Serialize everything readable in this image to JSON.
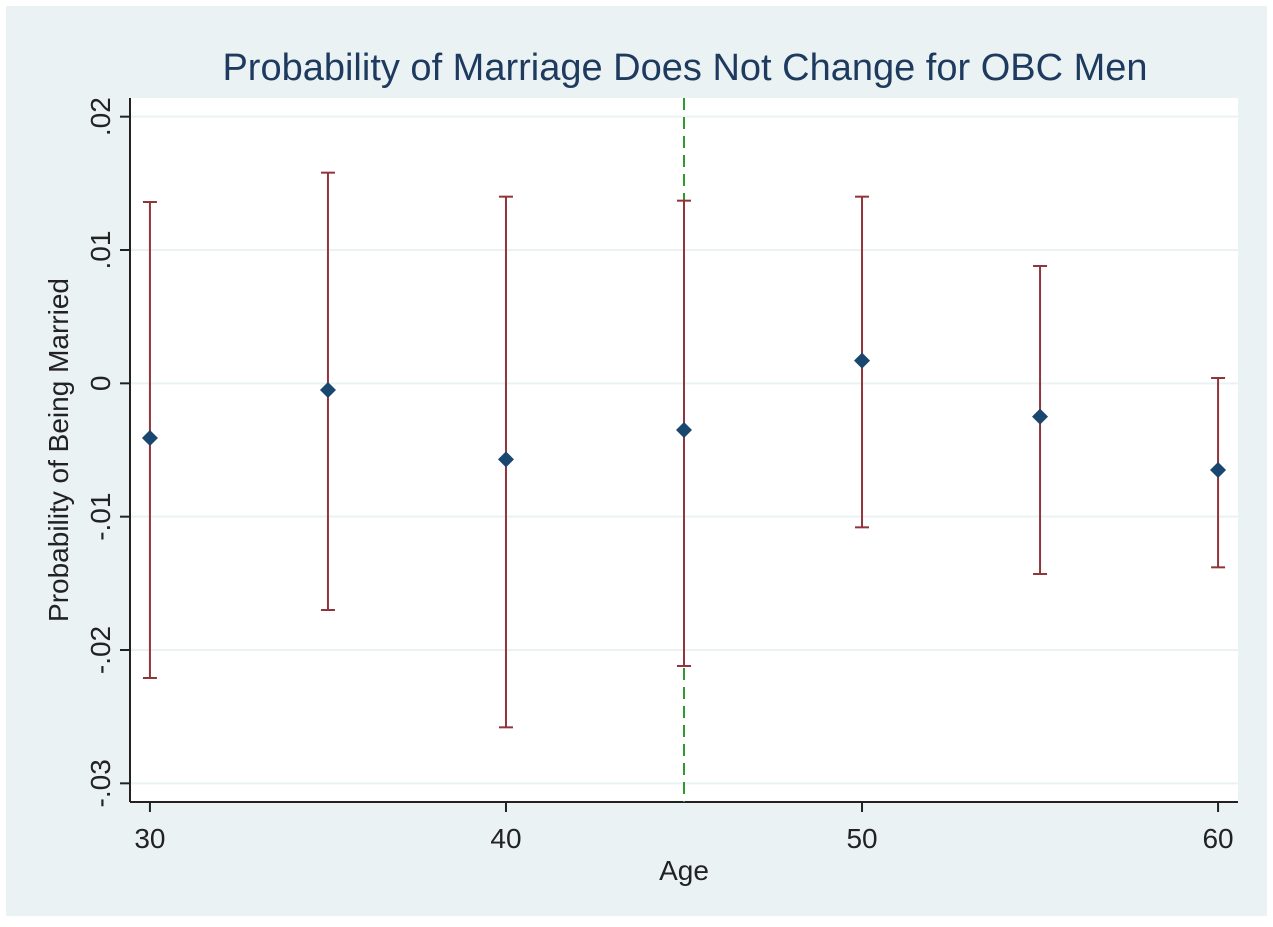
{
  "chart_data": {
    "type": "errorbar",
    "title": "Probability of Marriage Does Not Change for OBC Men",
    "x_label": "Age",
    "y_label": "Probability of Being Married",
    "x": [
      30,
      35,
      40,
      45,
      50,
      55,
      60
    ],
    "series": [
      {
        "color": "#1a476f",
        "ci_color": "#90353b",
        "values": [
          -0.0041,
          -0.0005,
          -0.0057,
          -0.0035,
          0.0017,
          -0.0025,
          -0.0065
        ],
        "lower": [
          -0.0221,
          -0.017,
          -0.0258,
          -0.0212,
          -0.0108,
          -0.0143,
          -0.0138
        ],
        "upper": [
          0.0136,
          0.0158,
          0.014,
          0.0137,
          0.014,
          0.0088,
          0.0004
        ]
      }
    ],
    "xline": {
      "value": 45,
      "color": "#2e9a2e"
    },
    "xlim": [
      29.44,
      60.56
    ],
    "ylim": [
      -0.0314,
      0.0214
    ],
    "xticks": [
      30,
      40,
      50,
      60
    ],
    "yticks": [
      {
        "value": -0.03,
        "label": "-.03"
      },
      {
        "value": -0.02,
        "label": "-.02"
      },
      {
        "value": -0.01,
        "label": "-.01"
      },
      0,
      {
        "value": 0.01,
        "label": ".01"
      },
      {
        "value": 0.02,
        "label": ".02"
      }
    ],
    "grid": true
  }
}
